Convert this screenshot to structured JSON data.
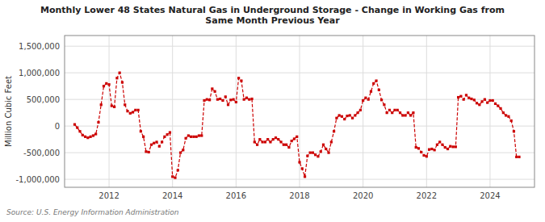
{
  "chart_data": {
    "type": "line",
    "title": "Monthly Lower 48 States Natural Gas in Underground Storage - Change in Working Gas from\nSame Month Previous Year",
    "y_label": "Million Cubic Feet",
    "annotations": [
      "Source: U.S. Energy Information Administration"
    ],
    "color": "#CC0000",
    "marker": "square",
    "line_style": "dashed",
    "grid": true,
    "xlim": [
      2010.6,
      2025.4
    ],
    "xticks": [
      2012,
      2014,
      2016,
      2018,
      2020,
      2022,
      2024
    ],
    "ylim": [
      -1150000,
      1700000
    ],
    "yticks": [
      {
        "value": -1000000,
        "label": "-1,000,000"
      },
      {
        "value": -500000,
        "label": "-500,000"
      },
      0,
      {
        "value": 500000,
        "label": "500,000"
      },
      {
        "value": 1000000,
        "label": "1,000,000"
      },
      {
        "value": 1500000,
        "label": "1,500,000"
      }
    ],
    "x": [
      2010.917,
      2011.0,
      2011.083,
      2011.167,
      2011.25,
      2011.333,
      2011.417,
      2011.5,
      2011.583,
      2011.667,
      2011.75,
      2011.833,
      2011.917,
      2012.0,
      2012.083,
      2012.167,
      2012.25,
      2012.333,
      2012.417,
      2012.5,
      2012.583,
      2012.667,
      2012.75,
      2012.833,
      2012.917,
      2013.0,
      2013.083,
      2013.167,
      2013.25,
      2013.333,
      2013.417,
      2013.5,
      2013.583,
      2013.667,
      2013.75,
      2013.833,
      2013.917,
      2014.0,
      2014.083,
      2014.167,
      2014.25,
      2014.333,
      2014.417,
      2014.5,
      2014.583,
      2014.667,
      2014.75,
      2014.833,
      2014.917,
      2015.0,
      2015.083,
      2015.167,
      2015.25,
      2015.333,
      2015.417,
      2015.5,
      2015.583,
      2015.667,
      2015.75,
      2015.833,
      2015.917,
      2016.0,
      2016.083,
      2016.167,
      2016.25,
      2016.333,
      2016.417,
      2016.5,
      2016.583,
      2016.667,
      2016.75,
      2016.833,
      2016.917,
      2017.0,
      2017.083,
      2017.167,
      2017.25,
      2017.333,
      2017.417,
      2017.5,
      2017.583,
      2017.667,
      2017.75,
      2017.833,
      2017.917,
      2018.0,
      2018.083,
      2018.167,
      2018.25,
      2018.333,
      2018.417,
      2018.5,
      2018.583,
      2018.667,
      2018.75,
      2018.833,
      2018.917,
      2019.0,
      2019.083,
      2019.167,
      2019.25,
      2019.333,
      2019.417,
      2019.5,
      2019.583,
      2019.667,
      2019.75,
      2019.833,
      2019.917,
      2020.0,
      2020.083,
      2020.167,
      2020.25,
      2020.333,
      2020.417,
      2020.5,
      2020.583,
      2020.667,
      2020.75,
      2020.833,
      2020.917,
      2021.0,
      2021.083,
      2021.167,
      2021.25,
      2021.333,
      2021.417,
      2021.5,
      2021.583,
      2021.667,
      2021.75,
      2021.833,
      2021.917,
      2022.0,
      2022.083,
      2022.167,
      2022.25,
      2022.333,
      2022.417,
      2022.5,
      2022.583,
      2022.667,
      2022.75,
      2022.833,
      2022.917,
      2023.0,
      2023.083,
      2023.167,
      2023.25,
      2023.333,
      2023.417,
      2023.5,
      2023.583,
      2023.667,
      2023.75,
      2023.833,
      2023.917,
      2024.0,
      2024.083,
      2024.167,
      2024.25,
      2024.333,
      2024.417,
      2024.5,
      2024.583,
      2024.667,
      2024.75,
      2024.833,
      2024.917
    ],
    "values": [
      30000,
      -30000,
      -100000,
      -170000,
      -200000,
      -220000,
      -200000,
      -180000,
      -150000,
      70000,
      400000,
      750000,
      800000,
      780000,
      380000,
      360000,
      900000,
      1000000,
      820000,
      400000,
      280000,
      240000,
      260000,
      300000,
      300000,
      -100000,
      -200000,
      -480000,
      -490000,
      -350000,
      -320000,
      -300000,
      -380000,
      -300000,
      -200000,
      -160000,
      -120000,
      -950000,
      -970000,
      -830000,
      -500000,
      -450000,
      -230000,
      -180000,
      -200000,
      -200000,
      -200000,
      -180000,
      -180000,
      480000,
      500000,
      490000,
      700000,
      650000,
      500000,
      510000,
      480000,
      550000,
      400000,
      490000,
      500000,
      450000,
      900000,
      850000,
      500000,
      530000,
      500000,
      510000,
      -300000,
      -350000,
      -250000,
      -300000,
      -300000,
      -250000,
      -300000,
      -250000,
      -220000,
      -250000,
      -300000,
      -350000,
      -350000,
      -400000,
      -280000,
      -240000,
      -200000,
      -680000,
      -800000,
      -950000,
      -560000,
      -500000,
      -500000,
      -540000,
      -570000,
      -480000,
      -350000,
      -430000,
      -500000,
      -300000,
      -100000,
      150000,
      200000,
      180000,
      130000,
      190000,
      200000,
      150000,
      200000,
      250000,
      300000,
      480000,
      530000,
      500000,
      650000,
      800000,
      850000,
      680000,
      490000,
      400000,
      250000,
      300000,
      250000,
      300000,
      300000,
      250000,
      200000,
      200000,
      250000,
      200000,
      250000,
      -400000,
      -420000,
      -490000,
      -550000,
      -570000,
      -440000,
      -430000,
      -450000,
      -350000,
      -300000,
      -350000,
      -400000,
      -430000,
      -380000,
      -390000,
      -390000,
      540000,
      560000,
      500000,
      580000,
      530000,
      510000,
      490000,
      430000,
      400000,
      460000,
      500000,
      440000,
      480000,
      480000,
      420000,
      380000,
      330000,
      250000,
      200000,
      180000,
      100000,
      -100000,
      -580000,
      -580000
    ]
  }
}
